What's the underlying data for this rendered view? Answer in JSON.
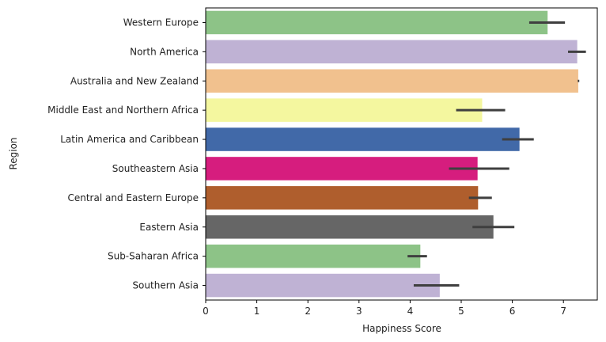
{
  "chart_data": {
    "type": "bar",
    "orientation": "horizontal",
    "xlabel": "Happiness Score",
    "ylabel": "Region",
    "xlim": [
      0,
      7.6
    ],
    "xticks": [
      0,
      1,
      2,
      3,
      4,
      5,
      6,
      7
    ],
    "grid": false,
    "categories": [
      "Western Europe",
      "North America",
      "Australia and New Zealand",
      "Middle East and Northern Africa",
      "Latin America and Caribbean",
      "Southeastern Asia",
      "Central and Eastern Europe",
      "Eastern Asia",
      "Sub-Saharan Africa",
      "Southern Asia"
    ],
    "values": [
      6.69,
      7.27,
      7.29,
      5.41,
      6.14,
      5.32,
      5.33,
      5.63,
      4.2,
      4.58
    ],
    "error_low": [
      6.33,
      7.09,
      7.28,
      4.9,
      5.8,
      4.76,
      5.15,
      5.22,
      3.95,
      4.07
    ],
    "error_high": [
      7.03,
      7.44,
      7.31,
      5.86,
      6.42,
      5.94,
      5.6,
      6.04,
      4.33,
      4.96
    ],
    "colors": [
      "#8dc387",
      "#bfb2d4",
      "#f1c18e",
      "#f4f79f",
      "#4169a8",
      "#d61d7e",
      "#af5e2d",
      "#666666",
      "#8dc387",
      "#bfb2d4"
    ],
    "error_color": "#3f3f3f"
  }
}
